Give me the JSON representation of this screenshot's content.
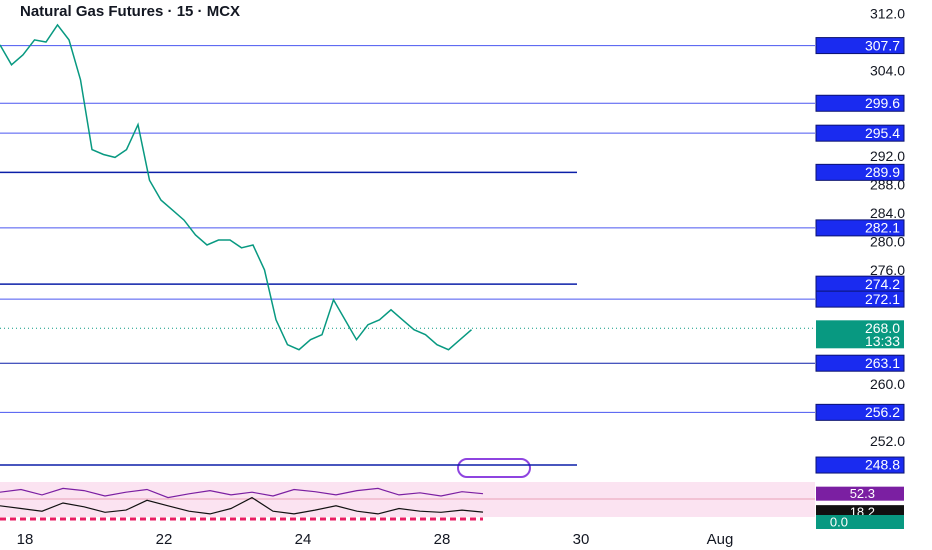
{
  "chart_data": {
    "type": "candle-line",
    "title": "Natural Gas Futures · 15 · MCX",
    "color": "#089981",
    "values": [
      307.8,
      305.0,
      306.4,
      308.5,
      308.2,
      310.6,
      308.5,
      302.9,
      293.1,
      292.4,
      292.0,
      293.1,
      296.6,
      288.8,
      286.0,
      284.6,
      283.2,
      281.1,
      279.7,
      280.4,
      280.4,
      279.3,
      279.7,
      276.2,
      269.2,
      265.7,
      265.0,
      266.4,
      267.1,
      272.0,
      269.2,
      266.4,
      268.5,
      269.2,
      270.6,
      269.2,
      267.8,
      267.1,
      265.7,
      265.0,
      266.4,
      267.8
    ],
    "ylim": [
      246.7,
      314.1
    ],
    "yticks": [
      {
        "value": 312,
        "label": "312.0"
      },
      {
        "value": 304,
        "label": "304.0"
      },
      {
        "value": 292,
        "label": "292.0"
      },
      {
        "value": 288,
        "label": "288.0"
      },
      {
        "value": 284,
        "label": "284.0"
      },
      {
        "value": 280,
        "label": "280.0"
      },
      {
        "value": 276,
        "label": "276.0"
      },
      {
        "value": 260,
        "label": "260.0"
      },
      {
        "value": 252,
        "label": "252.0"
      }
    ],
    "x_labels": [
      "18",
      "22",
      "24",
      "28",
      "30",
      "Aug"
    ],
    "levels": [
      {
        "value": 307.7,
        "label": "307.7",
        "color": "#4a56f0",
        "short": false
      },
      {
        "value": 299.6,
        "label": "299.6",
        "color": "#4a56f0",
        "short": false
      },
      {
        "value": 295.4,
        "label": "295.4",
        "color": "#4a56f0",
        "short": false
      },
      {
        "value": 289.9,
        "label": "289.9",
        "color": "#0b1fa8",
        "short": true
      },
      {
        "value": 282.1,
        "label": "282.1",
        "color": "#4a56f0",
        "short": false
      },
      {
        "value": 274.2,
        "label": "274.2",
        "color": "#0b1fa8",
        "short": true
      },
      {
        "value": 272.1,
        "label": "272.1",
        "color": "#4a56f0",
        "short": false
      },
      {
        "value": 263.1,
        "label": "263.1",
        "color": "#0b1fa8",
        "short": false
      },
      {
        "value": 256.2,
        "label": "256.2",
        "color": "#4a56f0",
        "short": false
      },
      {
        "value": 248.8,
        "label": "248.8",
        "color": "#0b1fa8",
        "short": true
      }
    ],
    "last_price": {
      "value": 268.0,
      "label": "268.0",
      "timer": "13:33",
      "color": "#089981"
    },
    "indicator": {
      "ylim": [
        0,
        72
      ],
      "series": [
        {
          "color": "#7b1fa2",
          "label": "52.3",
          "values": [
            55,
            60,
            50,
            62,
            58,
            48,
            55,
            60,
            45,
            52,
            58,
            50,
            55,
            48,
            60,
            56,
            50,
            58,
            62,
            50,
            54,
            48,
            56,
            52.3
          ]
        },
        {
          "color": "#111111",
          "label": "18.2",
          "values": [
            30,
            25,
            20,
            35,
            28,
            18,
            22,
            40,
            30,
            20,
            15,
            25,
            45,
            20,
            15,
            22,
            30,
            20,
            15,
            25,
            20,
            18,
            22,
            18.2
          ]
        }
      ],
      "zero": {
        "value": 0.0,
        "label": "0.0"
      }
    }
  }
}
